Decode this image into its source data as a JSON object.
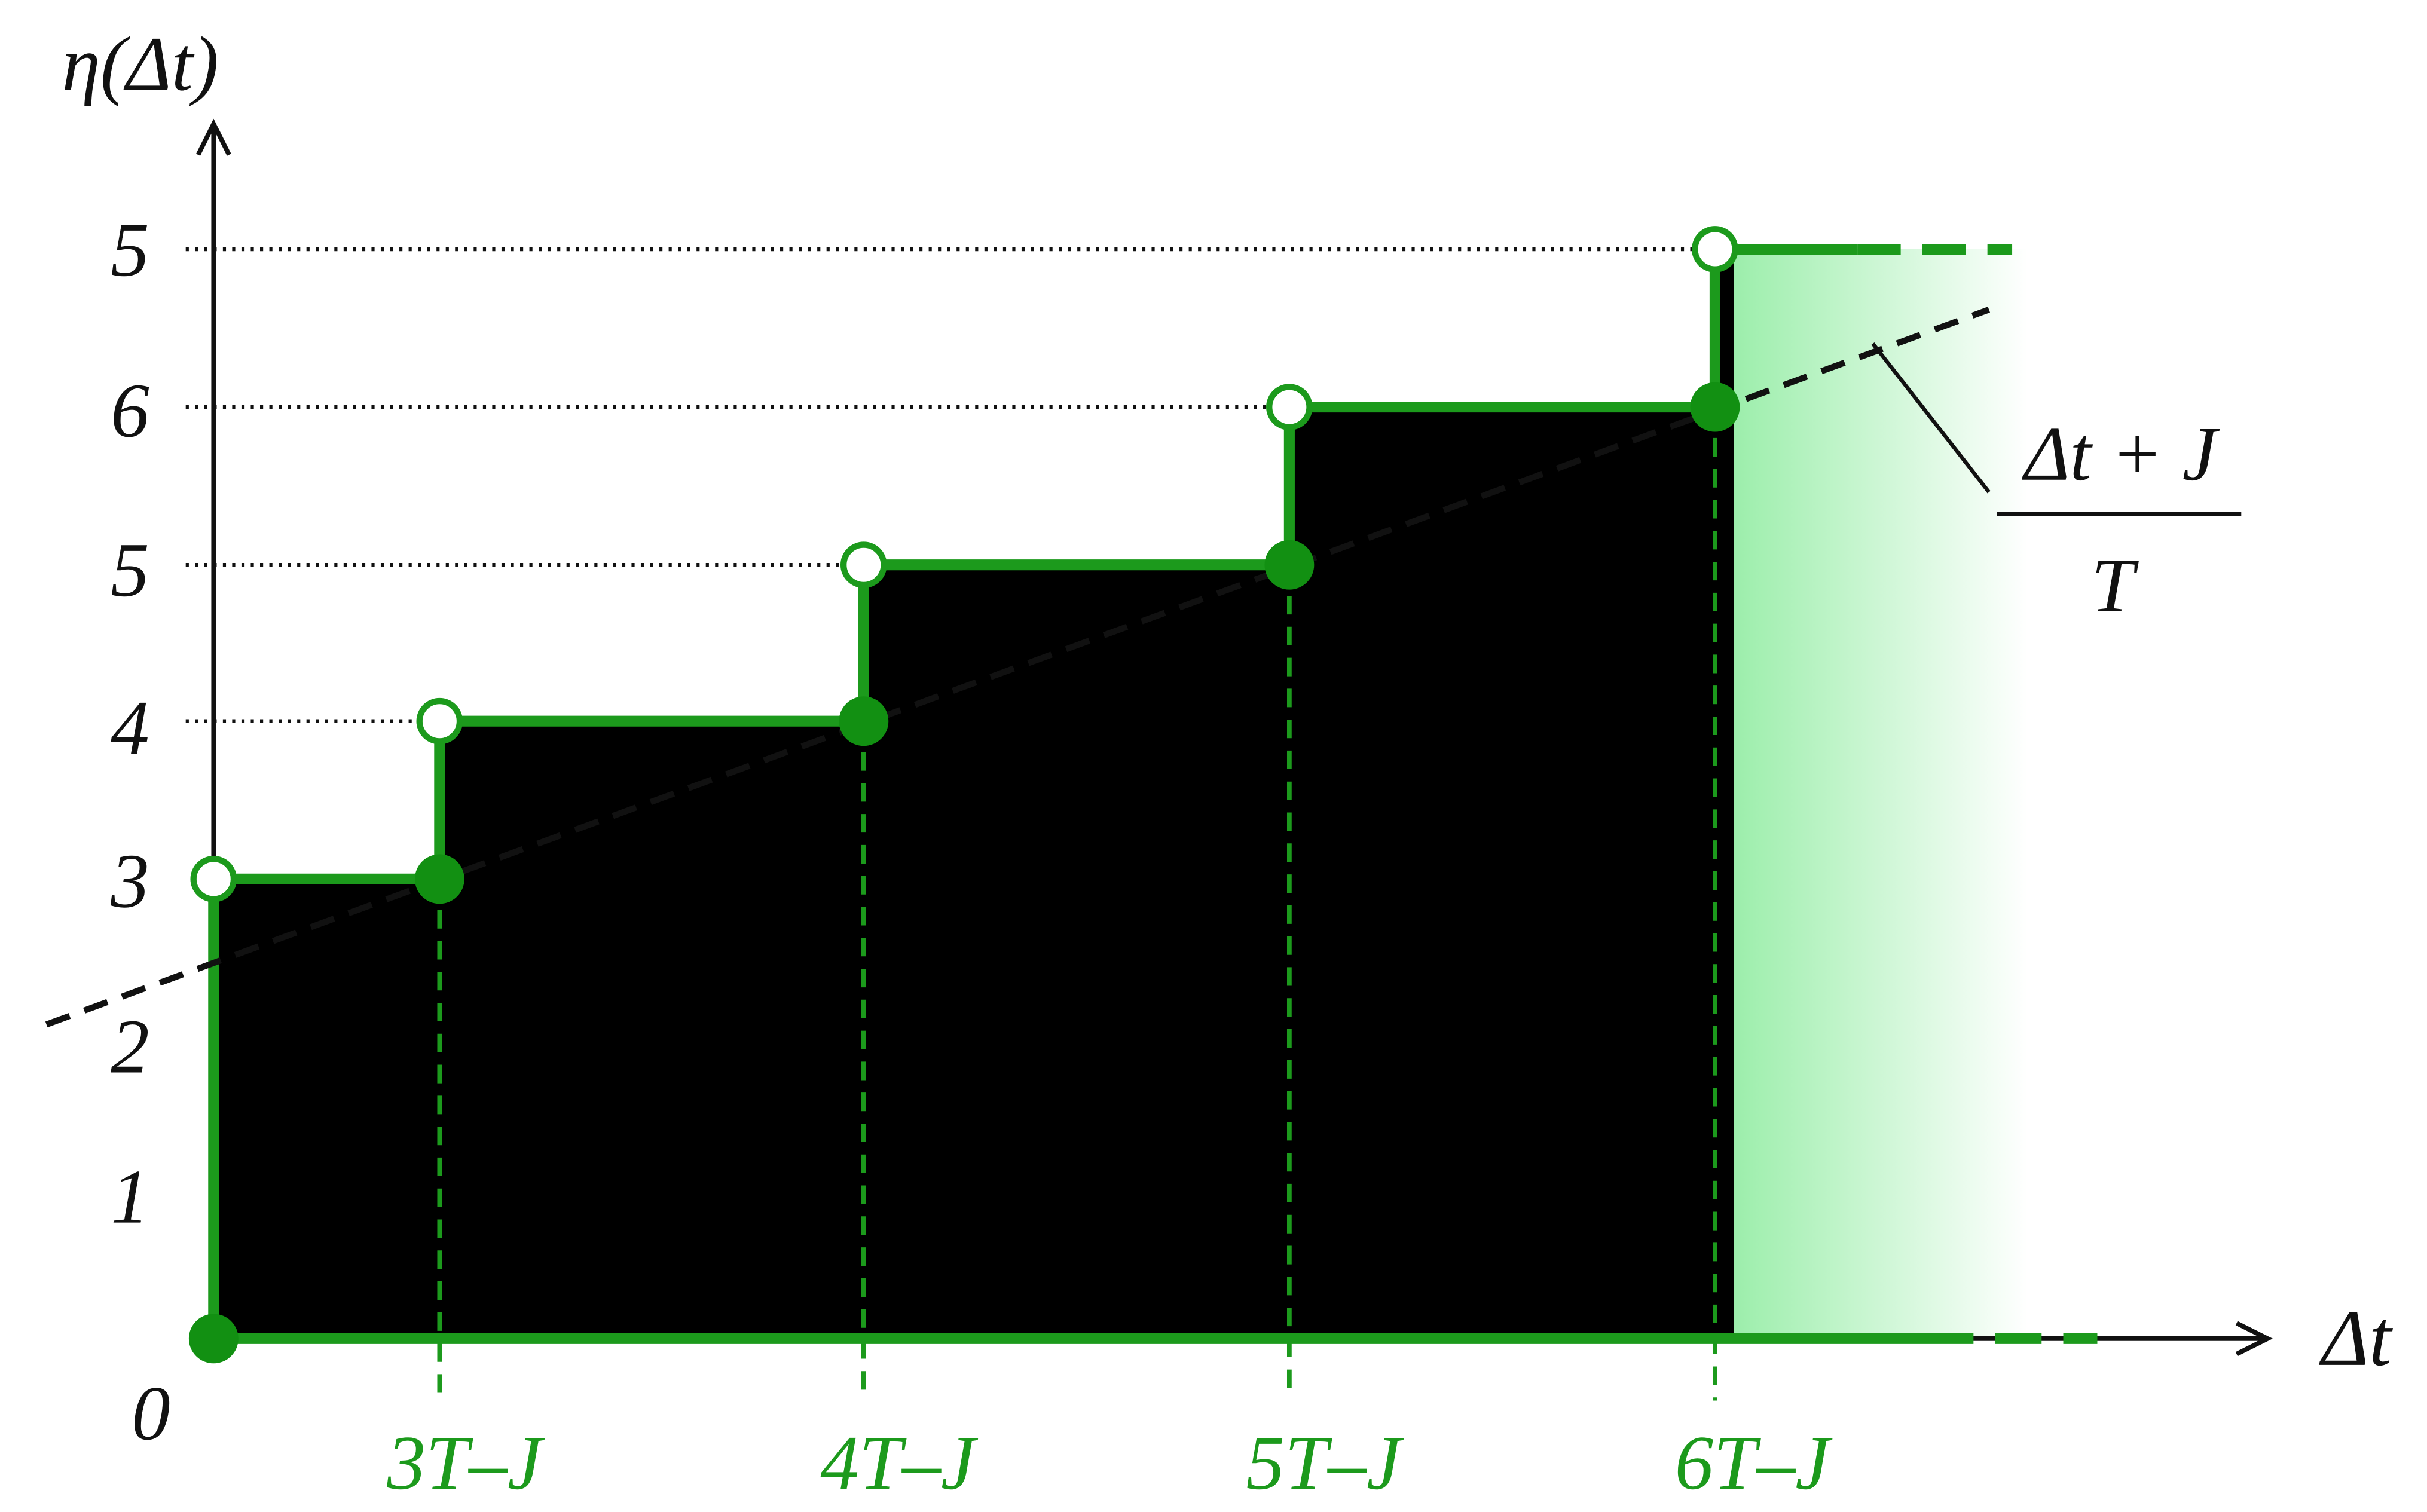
{
  "axes": {
    "y_label": "η(Δt)",
    "x_label": "Δt",
    "origin_label": "0",
    "y_labels": [
      "5",
      "6",
      "5",
      "4",
      "3",
      "2",
      "1"
    ],
    "x_labels": [
      "3T–J",
      "4T–J",
      "5T–J",
      "6T–J"
    ]
  },
  "annotation": {
    "numerator": "Δt + J",
    "denominator": "T"
  }
}
